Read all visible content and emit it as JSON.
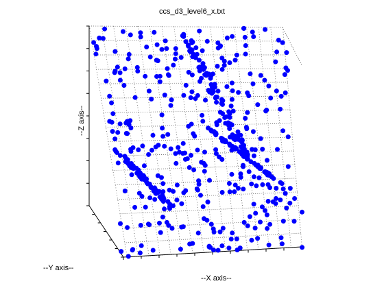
{
  "chart_data": {
    "type": "scatter",
    "title": "ccs_d3_level6_x.txt",
    "xlabel": "--X axis--",
    "ylabel": "--Y axis--",
    "zlabel": "--Z axis--",
    "marker_color": "#0000ff",
    "grid_color": "#555555",
    "grid": true,
    "grid_divisions": 16,
    "point_count": 560
  }
}
